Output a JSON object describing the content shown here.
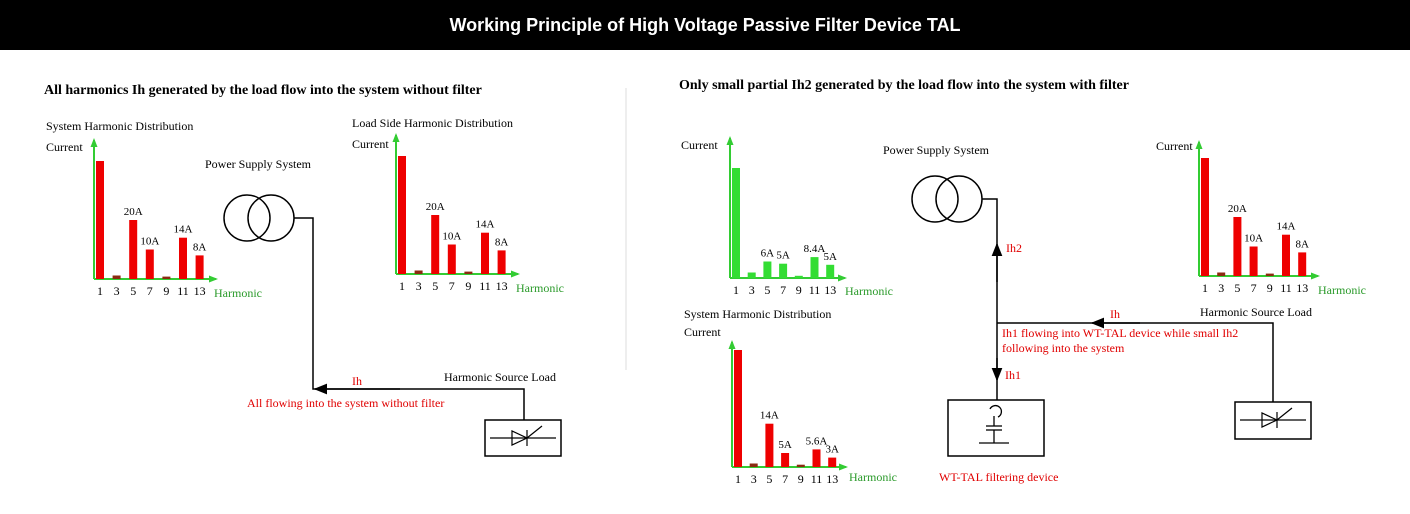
{
  "title": "Working Principle of High Voltage Passive Filter Device TAL",
  "colors": {
    "bar_red": "#ee0000",
    "bar_green": "#33dd33",
    "axis_green": "#33cc33",
    "label_red": "#e00000",
    "label_green": "#2a9a2a"
  },
  "left": {
    "heading": "All harmonics Ih generated by the load flow into the system without filter",
    "power_supply_label": "Power Supply System",
    "harmonic_source_label": "Harmonic Source Load",
    "ih_label": "Ih",
    "flow_label": "All flowing into the system without filter"
  },
  "right": {
    "heading": "Only small partial Ih2 generated by the load flow into the system with filter",
    "power_supply_label": "Power Supply System",
    "harmonic_source_label": "Harmonic Source Load",
    "ih_label": "Ih",
    "ih1_label": "Ih1",
    "ih2_label": "Ih2",
    "flow_line1": "Ih1 flowing into WT-TAL device while small Ih2",
    "flow_line2": "following into the system",
    "device_label": "WT-TAL filtering device"
  },
  "chart_data": [
    {
      "type": "bar",
      "title": "System Harmonic Distribution",
      "ylabel": "Current",
      "xlabel": "Harmonic",
      "categories": [
        "1",
        "3",
        "5",
        "7",
        "9",
        "11",
        "13"
      ],
      "values": [
        100,
        3,
        50,
        25,
        2,
        35,
        20
      ],
      "data_labels": [
        "",
        "",
        "20A",
        "10A",
        "",
        "14A",
        "8A"
      ],
      "bar_color": "#ee0000"
    },
    {
      "type": "bar",
      "title": "Load Side Harmonic Distribution",
      "ylabel": "Current",
      "xlabel": "Harmonic",
      "categories": [
        "1",
        "3",
        "5",
        "7",
        "9",
        "11",
        "13"
      ],
      "values": [
        100,
        3,
        50,
        25,
        2,
        35,
        20
      ],
      "data_labels": [
        "",
        "",
        "20A",
        "10A",
        "",
        "14A",
        "8A"
      ],
      "bar_color": "#ee0000"
    },
    {
      "type": "bar",
      "title": "",
      "ylabel": "Current",
      "xlabel": "Harmonic",
      "categories": [
        "1",
        "3",
        "5",
        "7",
        "9",
        "11",
        "13"
      ],
      "values": [
        100,
        5,
        15,
        13,
        2,
        19,
        12
      ],
      "data_labels": [
        "",
        "",
        "6A",
        "5A",
        "",
        "8.4A",
        "5A"
      ],
      "bar_color": "#33dd33"
    },
    {
      "type": "bar",
      "title": "",
      "ylabel": "Current",
      "xlabel": "Harmonic",
      "categories": [
        "1",
        "3",
        "5",
        "7",
        "9",
        "11",
        "13"
      ],
      "values": [
        100,
        3,
        50,
        25,
        2,
        35,
        20
      ],
      "data_labels": [
        "",
        "",
        "20A",
        "10A",
        "",
        "14A",
        "8A"
      ],
      "bar_color": "#ee0000"
    },
    {
      "type": "bar",
      "title": "System Harmonic Distribution",
      "ylabel": "Current",
      "xlabel": "Harmonic",
      "categories": [
        "1",
        "3",
        "5",
        "7",
        "9",
        "11",
        "13"
      ],
      "values": [
        100,
        3,
        37,
        12,
        2,
        15,
        8
      ],
      "data_labels": [
        "",
        "",
        "14A",
        "5A",
        "",
        "5.6A",
        "3A"
      ],
      "bar_color": "#ee0000"
    }
  ]
}
